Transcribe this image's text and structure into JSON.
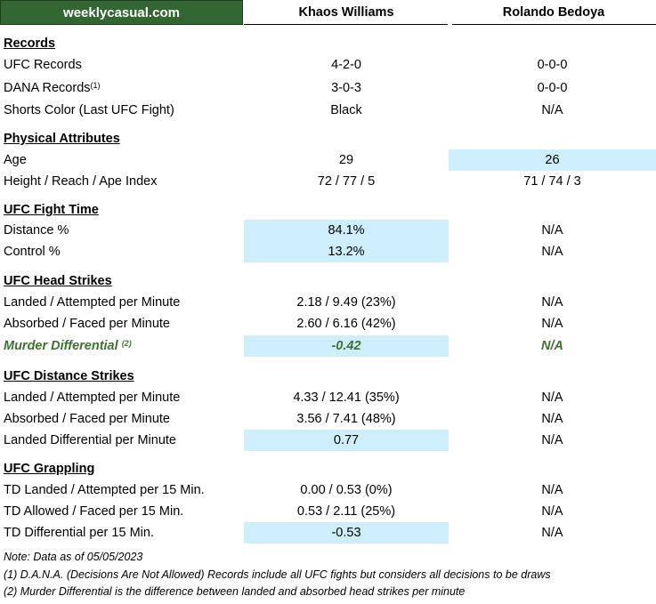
{
  "header": {
    "brand": "weeklycasual.com",
    "fighter_a": "Khaos Williams",
    "fighter_b": "Rolando Bedoya"
  },
  "sections": {
    "records": {
      "title": "Records",
      "ufc_records": {
        "label": "UFC Records",
        "a": "4-2-0",
        "b": "0-0-0"
      },
      "dana_records": {
        "label": "DANA Records",
        "sup": "(1)",
        "a": "3-0-3",
        "b": "0-0-0"
      },
      "shorts": {
        "label": "Shorts Color (Last UFC Fight)",
        "a": "Black",
        "b": "N/A"
      }
    },
    "physical": {
      "title": "Physical Attributes",
      "age": {
        "label": "Age",
        "a": "29",
        "b": "26"
      },
      "height": {
        "label": "Height / Reach / Ape Index",
        "a": "72 / 77 / 5",
        "b": "71 / 74 / 3"
      }
    },
    "fight_time": {
      "title": "UFC Fight Time",
      "distance": {
        "label": "Distance %",
        "a": "84.1%",
        "b": "N/A"
      },
      "control": {
        "label": "Control %",
        "a": "13.2%",
        "b": "N/A"
      }
    },
    "head_strikes": {
      "title": "UFC Head Strikes",
      "landed": {
        "label": "Landed / Attempted per Minute",
        "a": "2.18 / 9.49 (23%)",
        "b": "N/A"
      },
      "absorbed": {
        "label": "Absorbed / Faced per Minute",
        "a": "2.60 / 6.16 (42%)",
        "b": "N/A"
      },
      "murder": {
        "label": "Murder Differential",
        "sup": "(2)",
        "a": "-0.42",
        "b": "N/A"
      }
    },
    "distance_strikes": {
      "title": "UFC Distance Strikes",
      "landed": {
        "label": "Landed / Attempted per Minute",
        "a": "4.33 / 12.41 (35%)",
        "b": "N/A"
      },
      "absorbed": {
        "label": "Absorbed / Faced per Minute",
        "a": "3.56 / 7.41 (48%)",
        "b": "N/A"
      },
      "differential": {
        "label": "Landed Differential per Minute",
        "a": "0.77",
        "b": "N/A"
      }
    },
    "grappling": {
      "title": "UFC Grappling",
      "td_landed": {
        "label": "TD Landed / Attempted per 15 Min.",
        "a": "0.00 / 0.53 (0%)",
        "b": "N/A"
      },
      "td_allowed": {
        "label": "TD Allowed / Faced per 15 Min.",
        "a": "0.53 / 2.11 (25%)",
        "b": "N/A"
      },
      "td_diff": {
        "label": "TD Differential per 15 Min.",
        "a": "-0.53",
        "b": "N/A"
      }
    }
  },
  "notes": {
    "date": "Note: Data as of 05/05/2023",
    "note1": "(1) D.A.N.A. (Decisions Are Not Allowed) Records include all UFC fights but considers all decisions to be draws",
    "note2": "(2) Murder Differential is the difference between landed and absorbed head strikes per minute"
  },
  "colors": {
    "brand_bg": "#336633",
    "highlight": "#cdeefa",
    "murder_text": "#3f6f32"
  }
}
